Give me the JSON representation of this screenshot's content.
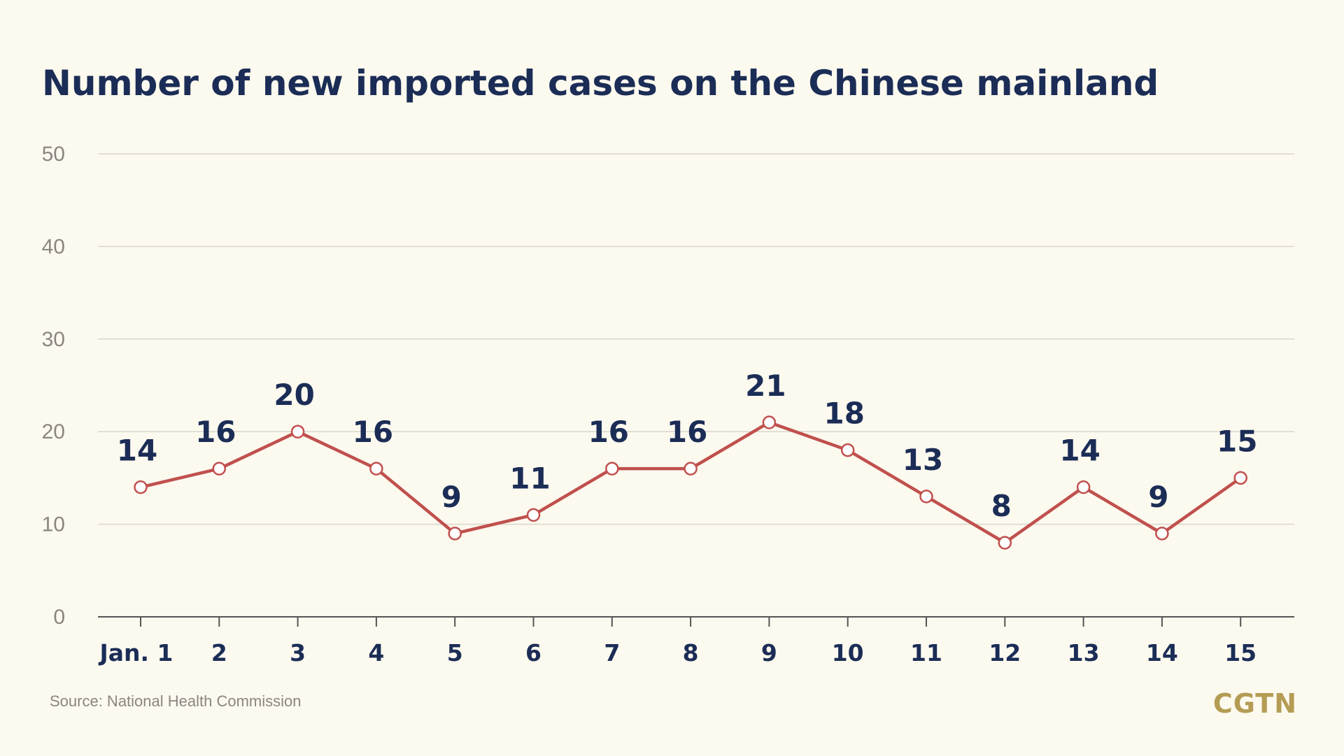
{
  "title": "Number of new imported cases on the Chinese mainland",
  "source": "Source: National Health Commission",
  "logo": "CGTN",
  "colors": {
    "background": "#fcf9ef",
    "title": "#1b2d56",
    "line": "#c0504d",
    "logo": "#b49c54"
  },
  "chart_data": {
    "type": "line",
    "title": "Number of new imported cases on the Chinese mainland",
    "xlabel": "",
    "ylabel": "",
    "categories": [
      "Jan. 1",
      "2",
      "3",
      "4",
      "5",
      "6",
      "7",
      "8",
      "9",
      "10",
      "11",
      "12",
      "13",
      "14",
      "15"
    ],
    "series": [
      {
        "values": [
          14,
          16,
          20,
          16,
          9,
          11,
          16,
          16,
          21,
          18,
          13,
          8,
          14,
          9,
          15
        ]
      }
    ],
    "ylim": [
      0,
      50
    ],
    "yticks": [
      0,
      10,
      20,
      30,
      40,
      50
    ],
    "grid": true,
    "data_labels": true
  }
}
